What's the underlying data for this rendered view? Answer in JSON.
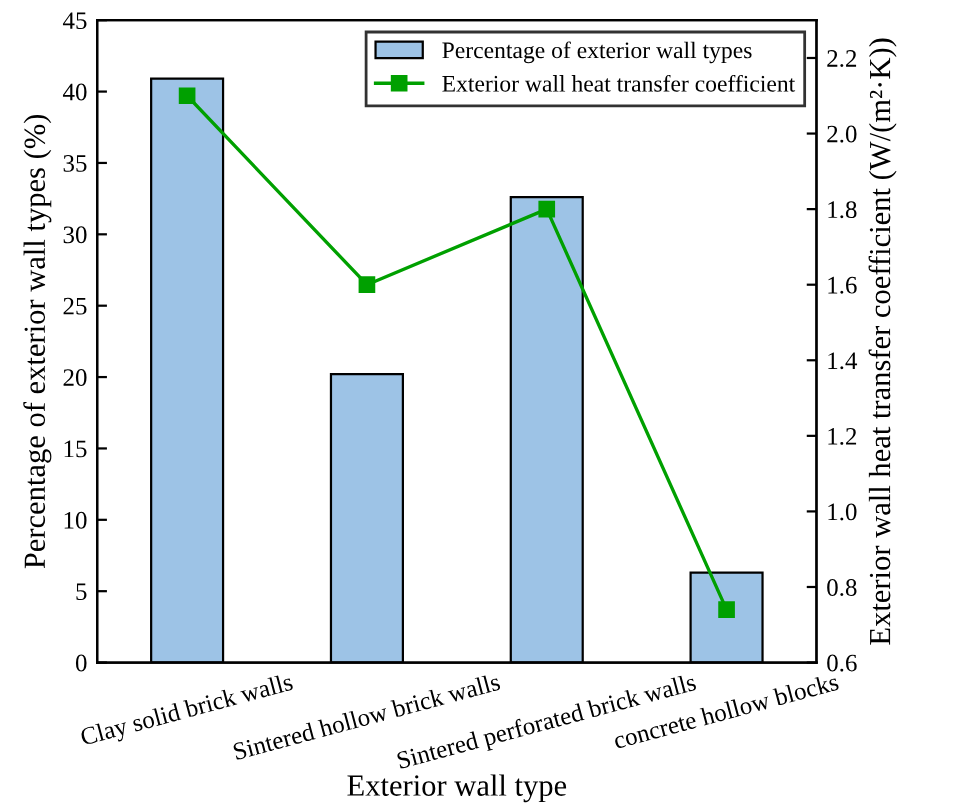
{
  "chart_data": {
    "type": "bar",
    "xlabel": "Exterior wall type",
    "ylabel": "Percentage of exterior wall types (%)",
    "y2label": "Exterior wall heat transfer coefficient (W/(m²·K))",
    "categories": [
      "Clay solid brick walls",
      "Sintered hollow brick walls",
      "Sintered perforated brick walls",
      "concrete hollow blocks"
    ],
    "series": [
      {
        "name": "Percentage of exterior wall types",
        "color": "#9dc3e6",
        "values": [
          40.9,
          20.2,
          32.6,
          6.3
        ]
      },
      {
        "name": "Exterior wall heat transfer coefficient",
        "type": "line",
        "axis": "y2",
        "color": "#00a000",
        "marker": "square",
        "values": [
          2.1,
          1.6,
          1.8,
          0.74
        ]
      }
    ],
    "ylim": [
      0,
      45
    ],
    "yticks": [
      0,
      5,
      10,
      15,
      20,
      25,
      30,
      35,
      40,
      45
    ],
    "y2lim": [
      0.6,
      2.3
    ],
    "y2ticks": [
      0.6,
      0.8,
      {
        "value": 1.0,
        "label": "1.0"
      },
      1.2,
      1.4,
      1.6,
      1.8,
      {
        "value": 2.0,
        "label": "2.0"
      },
      2.2
    ],
    "legend": "top right",
    "grid": false
  }
}
